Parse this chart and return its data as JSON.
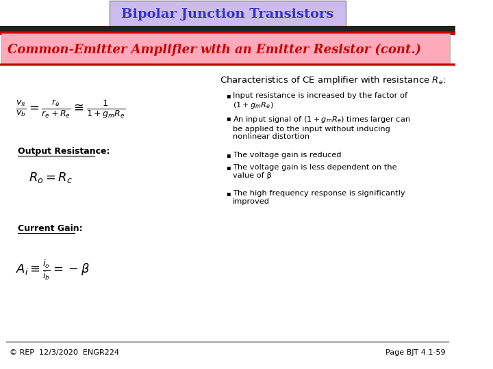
{
  "title": "Bipolar Junction Transistors",
  "subtitle": "Common-Emitter Amplifier with an Emitter Resistor (cont.)",
  "title_box_color": "#ccbbee",
  "subtitle_box_color": "#ffaabb",
  "subtitle_text_color": "#cc0000",
  "title_text_color": "#3333cc",
  "content_bg": "#ffffff",
  "output_resistance_label": "Output Resistance:",
  "current_gain_label": "Current Gain:",
  "footer_left": "© REP  12/3/2020  ENGR224",
  "footer_right": "Page BJT 4.1-59",
  "top_bar_color": "#222222",
  "red_bar_color": "#cc0000",
  "footer_line_color": "#000000",
  "bullet_points": [
    "Input resistance is increased by the factor of\n$(1+g_mR_e)$",
    "An input signal of $(1+g_mR_e)$ times larger can\nbe applied to the input without inducing\nnonlinear distortion",
    "The voltage gain is reduced",
    "The voltage gain is less dependent on the\nvalue of β",
    "The high frequency response is significantly\nimproved"
  ],
  "bullet_y": [
    135,
    168,
    222,
    240,
    278
  ]
}
